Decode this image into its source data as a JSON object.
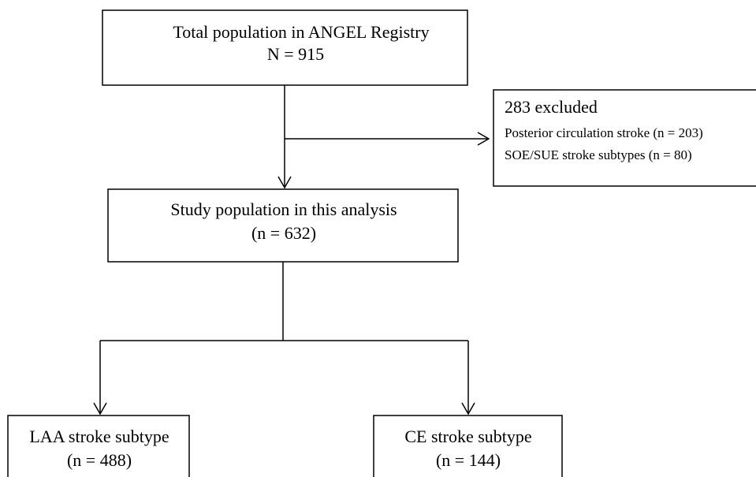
{
  "nodes": [
    {
      "lines": [
        "Total population in ANGEL Registry",
        "N = 915"
      ]
    },
    {
      "title": "283 excluded",
      "lines": [
        "Posterior circulation stroke (n = 203)",
        "SOE/SUE stroke subtypes (n = 80)"
      ]
    },
    {
      "lines": [
        "Study population in this analysis",
        "(n = 632)"
      ]
    },
    {
      "lines": [
        "LAA stroke subtype",
        "(n = 488)"
      ]
    },
    {
      "lines": [
        "CE stroke subtype",
        "(n = 144)"
      ]
    }
  ]
}
